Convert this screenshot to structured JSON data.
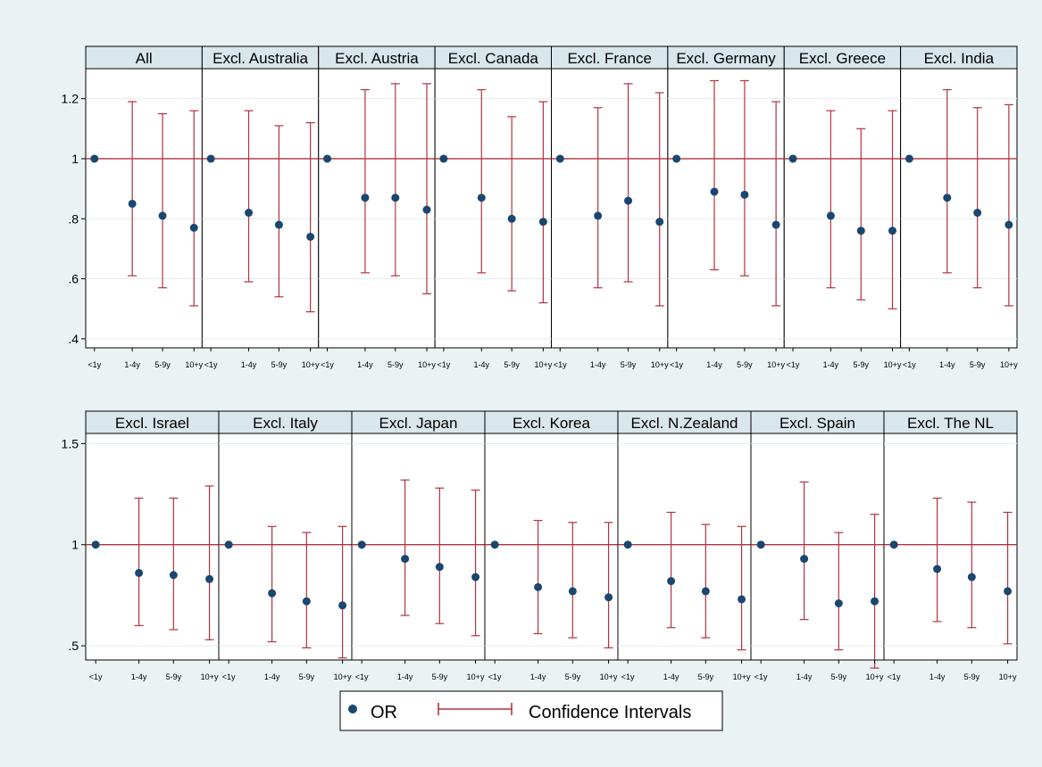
{
  "colors": {
    "background": "#eaf2f3",
    "plot_area": "#ffffff",
    "strip": "#d9e6eb",
    "marker": "#1a476f",
    "ci_line": "#b2333f",
    "reference_line": "#b2333f",
    "gridline": "#e3ecee"
  },
  "legend": {
    "or_label": "OR",
    "ci_label": "Confidence Intervals",
    "or_icon": "filled-circle-marker",
    "ci_icon": "capped-line-marker"
  },
  "chart_data": [
    {
      "type": "scatter",
      "subtype": "point-estimates-with-confidence-intervals",
      "categories": [
        "<1y",
        "1-4y",
        "5-9y",
        "10+y"
      ],
      "yticks": [
        0.4,
        0.6,
        0.8,
        1,
        1.2
      ],
      "ytick_labels": [
        ".4",
        ".6",
        ".8",
        "1",
        "1.2"
      ],
      "ylim": [
        0.37,
        1.3
      ],
      "reference_y": 1,
      "grid": true,
      "panels": [
        {
          "title": "All",
          "or": [
            1,
            0.85,
            0.81,
            0.77
          ],
          "lower": [
            1,
            0.61,
            0.57,
            0.51
          ],
          "upper": [
            1,
            1.19,
            1.15,
            1.16
          ]
        },
        {
          "title": "Excl. Australia",
          "or": [
            1,
            0.82,
            0.78,
            0.74
          ],
          "lower": [
            1,
            0.59,
            0.54,
            0.49
          ],
          "upper": [
            1,
            1.16,
            1.11,
            1.12
          ]
        },
        {
          "title": "Excl. Austria",
          "or": [
            1,
            0.87,
            0.87,
            0.83
          ],
          "lower": [
            1,
            0.62,
            0.61,
            0.55
          ],
          "upper": [
            1,
            1.23,
            1.25,
            1.25
          ]
        },
        {
          "title": "Excl. Canada",
          "or": [
            1,
            0.87,
            0.8,
            0.79
          ],
          "lower": [
            1,
            0.62,
            0.56,
            0.52
          ],
          "upper": [
            1,
            1.23,
            1.14,
            1.19
          ]
        },
        {
          "title": "Excl. France",
          "or": [
            1,
            0.81,
            0.86,
            0.79
          ],
          "lower": [
            1,
            0.57,
            0.59,
            0.51
          ],
          "upper": [
            1,
            1.17,
            1.25,
            1.22
          ]
        },
        {
          "title": "Excl. Germany",
          "or": [
            1,
            0.89,
            0.88,
            0.78
          ],
          "lower": [
            1,
            0.63,
            0.61,
            0.51
          ],
          "upper": [
            1,
            1.26,
            1.26,
            1.19
          ]
        },
        {
          "title": "Excl. Greece",
          "or": [
            1,
            0.81,
            0.76,
            0.76
          ],
          "lower": [
            1,
            0.57,
            0.53,
            0.5
          ],
          "upper": [
            1,
            1.16,
            1.1,
            1.16
          ]
        },
        {
          "title": "Excl. India",
          "or": [
            1,
            0.87,
            0.82,
            0.78
          ],
          "lower": [
            1,
            0.62,
            0.57,
            0.51
          ],
          "upper": [
            1,
            1.23,
            1.17,
            1.18
          ]
        }
      ]
    },
    {
      "type": "scatter",
      "subtype": "point-estimates-with-confidence-intervals",
      "categories": [
        "<1y",
        "1-4y",
        "5-9y",
        "10+y"
      ],
      "yticks": [
        0.5,
        1,
        1.5
      ],
      "ytick_labels": [
        ".5",
        "1",
        "1.5"
      ],
      "ylim": [
        0.43,
        1.55
      ],
      "reference_y": 1,
      "grid": true,
      "panels": [
        {
          "title": "Excl. Israel",
          "or": [
            1,
            0.86,
            0.85,
            0.83
          ],
          "lower": [
            1,
            0.6,
            0.58,
            0.53
          ],
          "upper": [
            1,
            1.23,
            1.23,
            1.29
          ]
        },
        {
          "title": "Excl. Italy",
          "or": [
            1,
            0.76,
            0.72,
            0.7
          ],
          "lower": [
            1,
            0.52,
            0.49,
            0.44
          ],
          "upper": [
            1,
            1.09,
            1.06,
            1.09
          ]
        },
        {
          "title": "Excl. Japan",
          "or": [
            1,
            0.93,
            0.89,
            0.84
          ],
          "lower": [
            1,
            0.65,
            0.61,
            0.55
          ],
          "upper": [
            1,
            1.32,
            1.28,
            1.27
          ]
        },
        {
          "title": "Excl. Korea",
          "or": [
            1,
            0.79,
            0.77,
            0.74
          ],
          "lower": [
            1,
            0.56,
            0.54,
            0.49
          ],
          "upper": [
            1,
            1.12,
            1.11,
            1.11
          ]
        },
        {
          "title": "Excl. N.Zealand",
          "or": [
            1,
            0.82,
            0.77,
            0.73
          ],
          "lower": [
            1,
            0.59,
            0.54,
            0.48
          ],
          "upper": [
            1,
            1.16,
            1.1,
            1.09
          ]
        },
        {
          "title": "Excl. Spain",
          "or": [
            1,
            0.93,
            0.71,
            0.72
          ],
          "lower": [
            1,
            0.63,
            0.48,
            0.39
          ],
          "upper": [
            1,
            1.31,
            1.06,
            1.15
          ]
        },
        {
          "title": "Excl. The NL",
          "or": [
            1,
            0.88,
            0.84,
            0.77
          ],
          "lower": [
            1,
            0.62,
            0.59,
            0.51
          ],
          "upper": [
            1,
            1.23,
            1.21,
            1.16
          ]
        }
      ]
    }
  ]
}
